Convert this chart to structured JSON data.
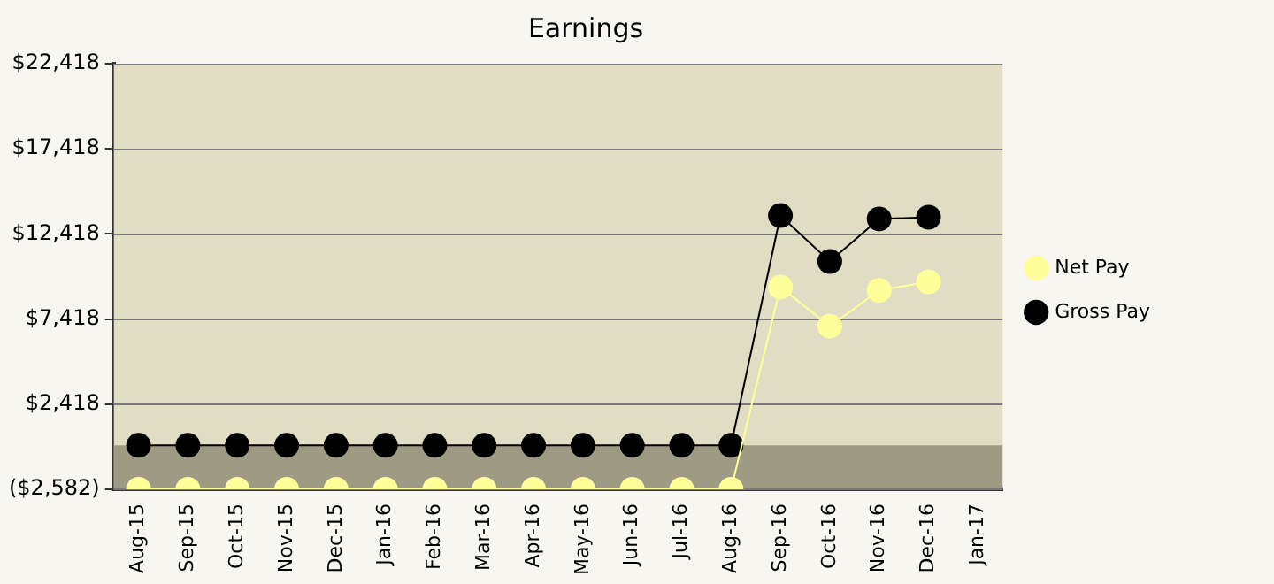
{
  "chart_data": {
    "type": "line",
    "title": "Earnings",
    "categories": [
      "Aug-15",
      "Sep-15",
      "Oct-15",
      "Nov-15",
      "Dec-15",
      "Jan-16",
      "Feb-16",
      "Mar-16",
      "Apr-16",
      "May-16",
      "Jun-16",
      "Jul-16",
      "Aug-16",
      "Sep-16",
      "Oct-16",
      "Nov-16",
      "Dec-16",
      "Jan-17"
    ],
    "series": [
      {
        "name": "Net Pay",
        "color": "#ffff99",
        "values": [
          -2582,
          -2582,
          -2582,
          -2582,
          -2582,
          -2582,
          -2582,
          -2582,
          -2582,
          -2582,
          -2582,
          -2582,
          -2582,
          9300,
          7000,
          9100,
          9600,
          null
        ]
      },
      {
        "name": "Gross Pay",
        "color": "#000000",
        "values": [
          0,
          0,
          0,
          0,
          0,
          0,
          0,
          0,
          0,
          0,
          0,
          0,
          0,
          13500,
          10800,
          13300,
          13400,
          null
        ]
      }
    ],
    "ylim": [
      -2582,
      22418
    ],
    "yticks": [
      {
        "value": -2582,
        "label": "($2,582)"
      },
      {
        "value": 2418,
        "label": "$2,418"
      },
      {
        "value": 7418,
        "label": "$7,418"
      },
      {
        "value": 12418,
        "label": "$12,418"
      },
      {
        "value": 17418,
        "label": "$17,418"
      },
      {
        "value": 22418,
        "label": "$22,418"
      }
    ],
    "bands": [
      {
        "axis": "y",
        "from": -2582,
        "to": 0,
        "color": "#9e9a84"
      }
    ],
    "grid": "y",
    "legend": "right",
    "marker": "circle",
    "line_style": "solid"
  }
}
